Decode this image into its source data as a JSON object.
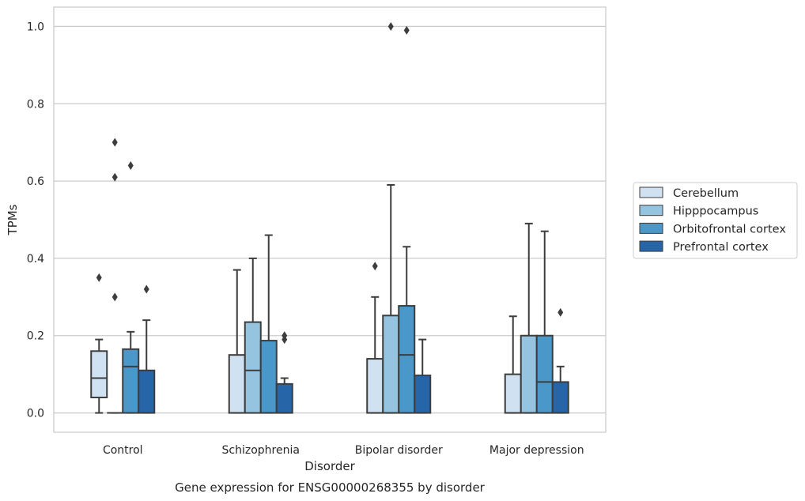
{
  "chart_data": {
    "type": "box",
    "title": "",
    "caption": "Gene expression for ENSG00000268355 by disorder",
    "xlabel": "Disorder",
    "ylabel": "TPMs",
    "ylim": [
      -0.05,
      1.05
    ],
    "yticks": [
      0.0,
      0.2,
      0.4,
      0.6,
      0.8,
      1.0
    ],
    "ytick_labels": [
      "0.0",
      "0.2",
      "0.4",
      "0.6",
      "0.8",
      "1.0"
    ],
    "grid": "horizontal",
    "legend_position": "center-right outside",
    "categories": [
      "Control",
      "Schizophrenia",
      "Bipolar disorder",
      "Major depression"
    ],
    "series": [
      {
        "name": "Cerebellum",
        "color": "#d0e1f2",
        "boxes": [
          {
            "q1": 0.04,
            "median": 0.09,
            "q3": 0.16,
            "whisker_low": 0.0,
            "whisker_high": 0.19,
            "outliers": [
              0.35
            ]
          },
          {
            "q1": 0.0,
            "median": 0.0,
            "q3": 0.15,
            "whisker_low": 0.0,
            "whisker_high": 0.37,
            "outliers": []
          },
          {
            "q1": 0.0,
            "median": 0.0,
            "q3": 0.14,
            "whisker_low": 0.0,
            "whisker_high": 0.3,
            "outliers": [
              0.38
            ]
          },
          {
            "q1": 0.0,
            "median": 0.0,
            "q3": 0.1,
            "whisker_low": 0.0,
            "whisker_high": 0.25,
            "outliers": []
          }
        ]
      },
      {
        "name": "Hipppocampus",
        "color": "#94c4df",
        "boxes": [
          {
            "q1": 0.0,
            "median": 0.0,
            "q3": 0.0,
            "whisker_low": 0.0,
            "whisker_high": 0.0,
            "outliers": [
              0.3,
              0.61,
              0.7
            ]
          },
          {
            "q1": 0.0,
            "median": 0.11,
            "q3": 0.235,
            "whisker_low": 0.0,
            "whisker_high": 0.4,
            "outliers": []
          },
          {
            "q1": 0.0,
            "median": 0.0,
            "q3": 0.252,
            "whisker_low": 0.0,
            "whisker_high": 0.59,
            "outliers": [
              1.0
            ]
          },
          {
            "q1": 0.0,
            "median": 0.0,
            "q3": 0.2,
            "whisker_low": 0.0,
            "whisker_high": 0.49,
            "outliers": []
          }
        ]
      },
      {
        "name": "Orbitofrontal cortex",
        "color": "#4a98c9",
        "boxes": [
          {
            "q1": 0.0,
            "median": 0.12,
            "q3": 0.165,
            "whisker_low": 0.0,
            "whisker_high": 0.21,
            "outliers": [
              0.64
            ]
          },
          {
            "q1": 0.0,
            "median": 0.0,
            "q3": 0.187,
            "whisker_low": 0.0,
            "whisker_high": 0.46,
            "outliers": []
          },
          {
            "q1": 0.0,
            "median": 0.15,
            "q3": 0.277,
            "whisker_low": 0.0,
            "whisker_high": 0.43,
            "outliers": [
              0.99
            ]
          },
          {
            "q1": 0.0,
            "median": 0.08,
            "q3": 0.2,
            "whisker_low": 0.0,
            "whisker_high": 0.47,
            "outliers": []
          }
        ]
      },
      {
        "name": "Prefrontal cortex",
        "color": "#2565a8",
        "boxes": [
          {
            "q1": 0.0,
            "median": 0.0,
            "q3": 0.11,
            "whisker_low": 0.0,
            "whisker_high": 0.24,
            "outliers": [
              0.32
            ]
          },
          {
            "q1": 0.0,
            "median": 0.0,
            "q3": 0.075,
            "whisker_low": 0.0,
            "whisker_high": 0.09,
            "outliers": [
              0.19,
              0.2
            ]
          },
          {
            "q1": 0.0,
            "median": 0.0,
            "q3": 0.097,
            "whisker_low": 0.0,
            "whisker_high": 0.19,
            "outliers": []
          },
          {
            "q1": 0.0,
            "median": 0.0,
            "q3": 0.08,
            "whisker_low": 0.0,
            "whisker_high": 0.12,
            "outliers": [
              0.26
            ]
          }
        ]
      }
    ]
  }
}
